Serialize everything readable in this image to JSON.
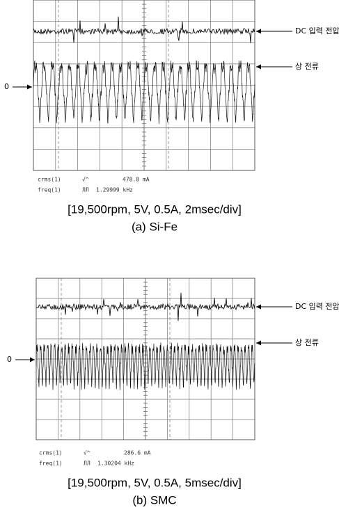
{
  "panels": [
    {
      "labels": {
        "dc_voltage": "DC 입력 전압",
        "phase_current": "상 전류",
        "zero": "0"
      },
      "readout": {
        "rms_name": "crms(1)",
        "rms_icon": "√^",
        "rms_value": "478.8 mA",
        "freq_name": "freq(1)",
        "freq_icon": "ЛЛ",
        "freq_value": "1.29999 kHz"
      },
      "caption": "[19,500rpm, 5V, 0.5A, 2msec/div]",
      "label": "(a) Si-Fe"
    },
    {
      "labels": {
        "dc_voltage": "DC 입력 전압",
        "phase_current": "상 전류",
        "zero": "0"
      },
      "readout": {
        "rms_name": "crms(1)",
        "rms_icon": "√^",
        "rms_value": "286.6 mA",
        "freq_name": "freq(1)",
        "freq_icon": "ЛЛ",
        "freq_value": "1.30204 kHz"
      },
      "caption": "[19,500rpm, 5V, 0.5A, 5msec/div]",
      "label": "(b) SMC"
    }
  ]
}
